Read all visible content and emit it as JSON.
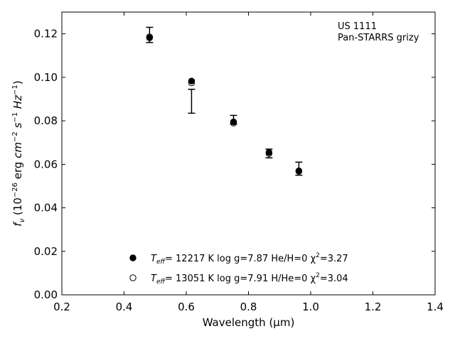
{
  "chart_data": {
    "type": "scatter",
    "title": "",
    "xlabel": "Wavelength (μm)",
    "ylabel": "f_ν (10^-26 erg cm^-2 s^-1 Hz^-1)",
    "xlim": [
      0.2,
      1.4
    ],
    "ylim": [
      0.0,
      0.13
    ],
    "xticks": [
      0.2,
      0.4,
      0.6,
      0.8,
      1.0,
      1.2,
      1.4
    ],
    "xtick_labels": [
      "0.2",
      "0.4",
      "0.6",
      "0.8",
      "1.0",
      "1.2",
      "1.4"
    ],
    "yticks": [
      0.0,
      0.02,
      0.04,
      0.06,
      0.08,
      0.1,
      0.12
    ],
    "ytick_labels": [
      "0.00",
      "0.02",
      "0.04",
      "0.06",
      "0.08",
      "0.10",
      "0.12"
    ],
    "grid": false,
    "annotation": [
      "US 1111",
      "Pan-STARRS grizy"
    ],
    "legend_position": "bottom-center",
    "observed": {
      "x": [
        0.482,
        0.617,
        0.752,
        0.866,
        0.962
      ],
      "y": [
        0.1195,
        0.089,
        0.0805,
        0.065,
        0.058
      ],
      "yerr": [
        0.0035,
        0.0055,
        0.002,
        0.002,
        0.003
      ]
    },
    "series": [
      {
        "name": "T_eff= 12217 K  log g=7.87  He/H=0  χ²=3.27",
        "marker": "filled-circle",
        "x": [
          0.482,
          0.617,
          0.752,
          0.866,
          0.962
        ],
        "y": [
          0.1182,
          0.0983,
          0.0795,
          0.0655,
          0.057
        ]
      },
      {
        "name": "T_eff= 13051 K  log g=7.91  H/He=0  χ²=3.04",
        "marker": "open-circle",
        "x": [
          0.482,
          0.617,
          0.752,
          0.866,
          0.962
        ],
        "y": [
          0.1186,
          0.0975,
          0.079,
          0.065,
          0.0568
        ]
      }
    ],
    "legend": [
      {
        "prefix": "T",
        "sub": "eff",
        "rest": "= 12217 K  log g=7.87  He/H=0  χ",
        "sup": "2",
        "tail": "=3.27"
      },
      {
        "prefix": "T",
        "sub": "eff",
        "rest": "= 13051 K  log g=7.91  H/He=0  χ",
        "sup": "2",
        "tail": "=3.04"
      }
    ],
    "colors": {
      "ink": "#000000",
      "background": "#ffffff"
    }
  }
}
